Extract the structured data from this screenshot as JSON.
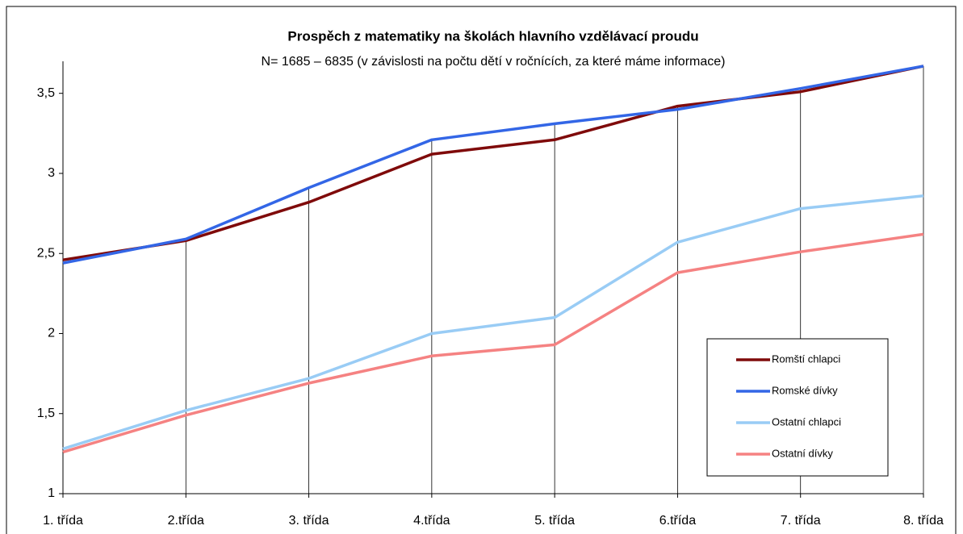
{
  "chart_data": {
    "type": "line",
    "title": "Prospěch z matematiky na školách hlavního vzdělávací proudu",
    "subtitle": "N= 1685 – 6835 (v závislosti na počtu dětí v ročnících, za které máme informace)",
    "categories": [
      "1. třída",
      "2.třída",
      "3. třída",
      "4.třída",
      "5. třída",
      "6.třída",
      "7. třída",
      "8. třída"
    ],
    "series": [
      {
        "name": "Romští chlapci",
        "color": "#7f0a0a",
        "values": [
          2.46,
          2.58,
          2.82,
          3.12,
          3.21,
          3.42,
          3.51,
          3.67
        ]
      },
      {
        "name": "Romské dívky",
        "color": "#3366e6",
        "values": [
          2.44,
          2.59,
          2.91,
          3.21,
          3.31,
          3.4,
          3.53,
          3.67
        ]
      },
      {
        "name": "Ostatní chlapci",
        "color": "#99ccf5",
        "values": [
          1.28,
          1.52,
          1.72,
          2.0,
          2.1,
          2.57,
          2.78,
          2.86
        ]
      },
      {
        "name": "Ostatní dívky",
        "color": "#f58282",
        "values": [
          1.26,
          1.49,
          1.69,
          1.86,
          1.93,
          2.38,
          2.51,
          2.62
        ]
      }
    ],
    "ylim": [
      1,
      3.7
    ],
    "yticks": [
      1,
      {
        "value": 1.5,
        "label": "1,5"
      },
      2,
      {
        "value": 2.5,
        "label": "2,5"
      },
      3,
      {
        "value": 3.5,
        "label": "3,5"
      }
    ],
    "legend": "lower right"
  }
}
